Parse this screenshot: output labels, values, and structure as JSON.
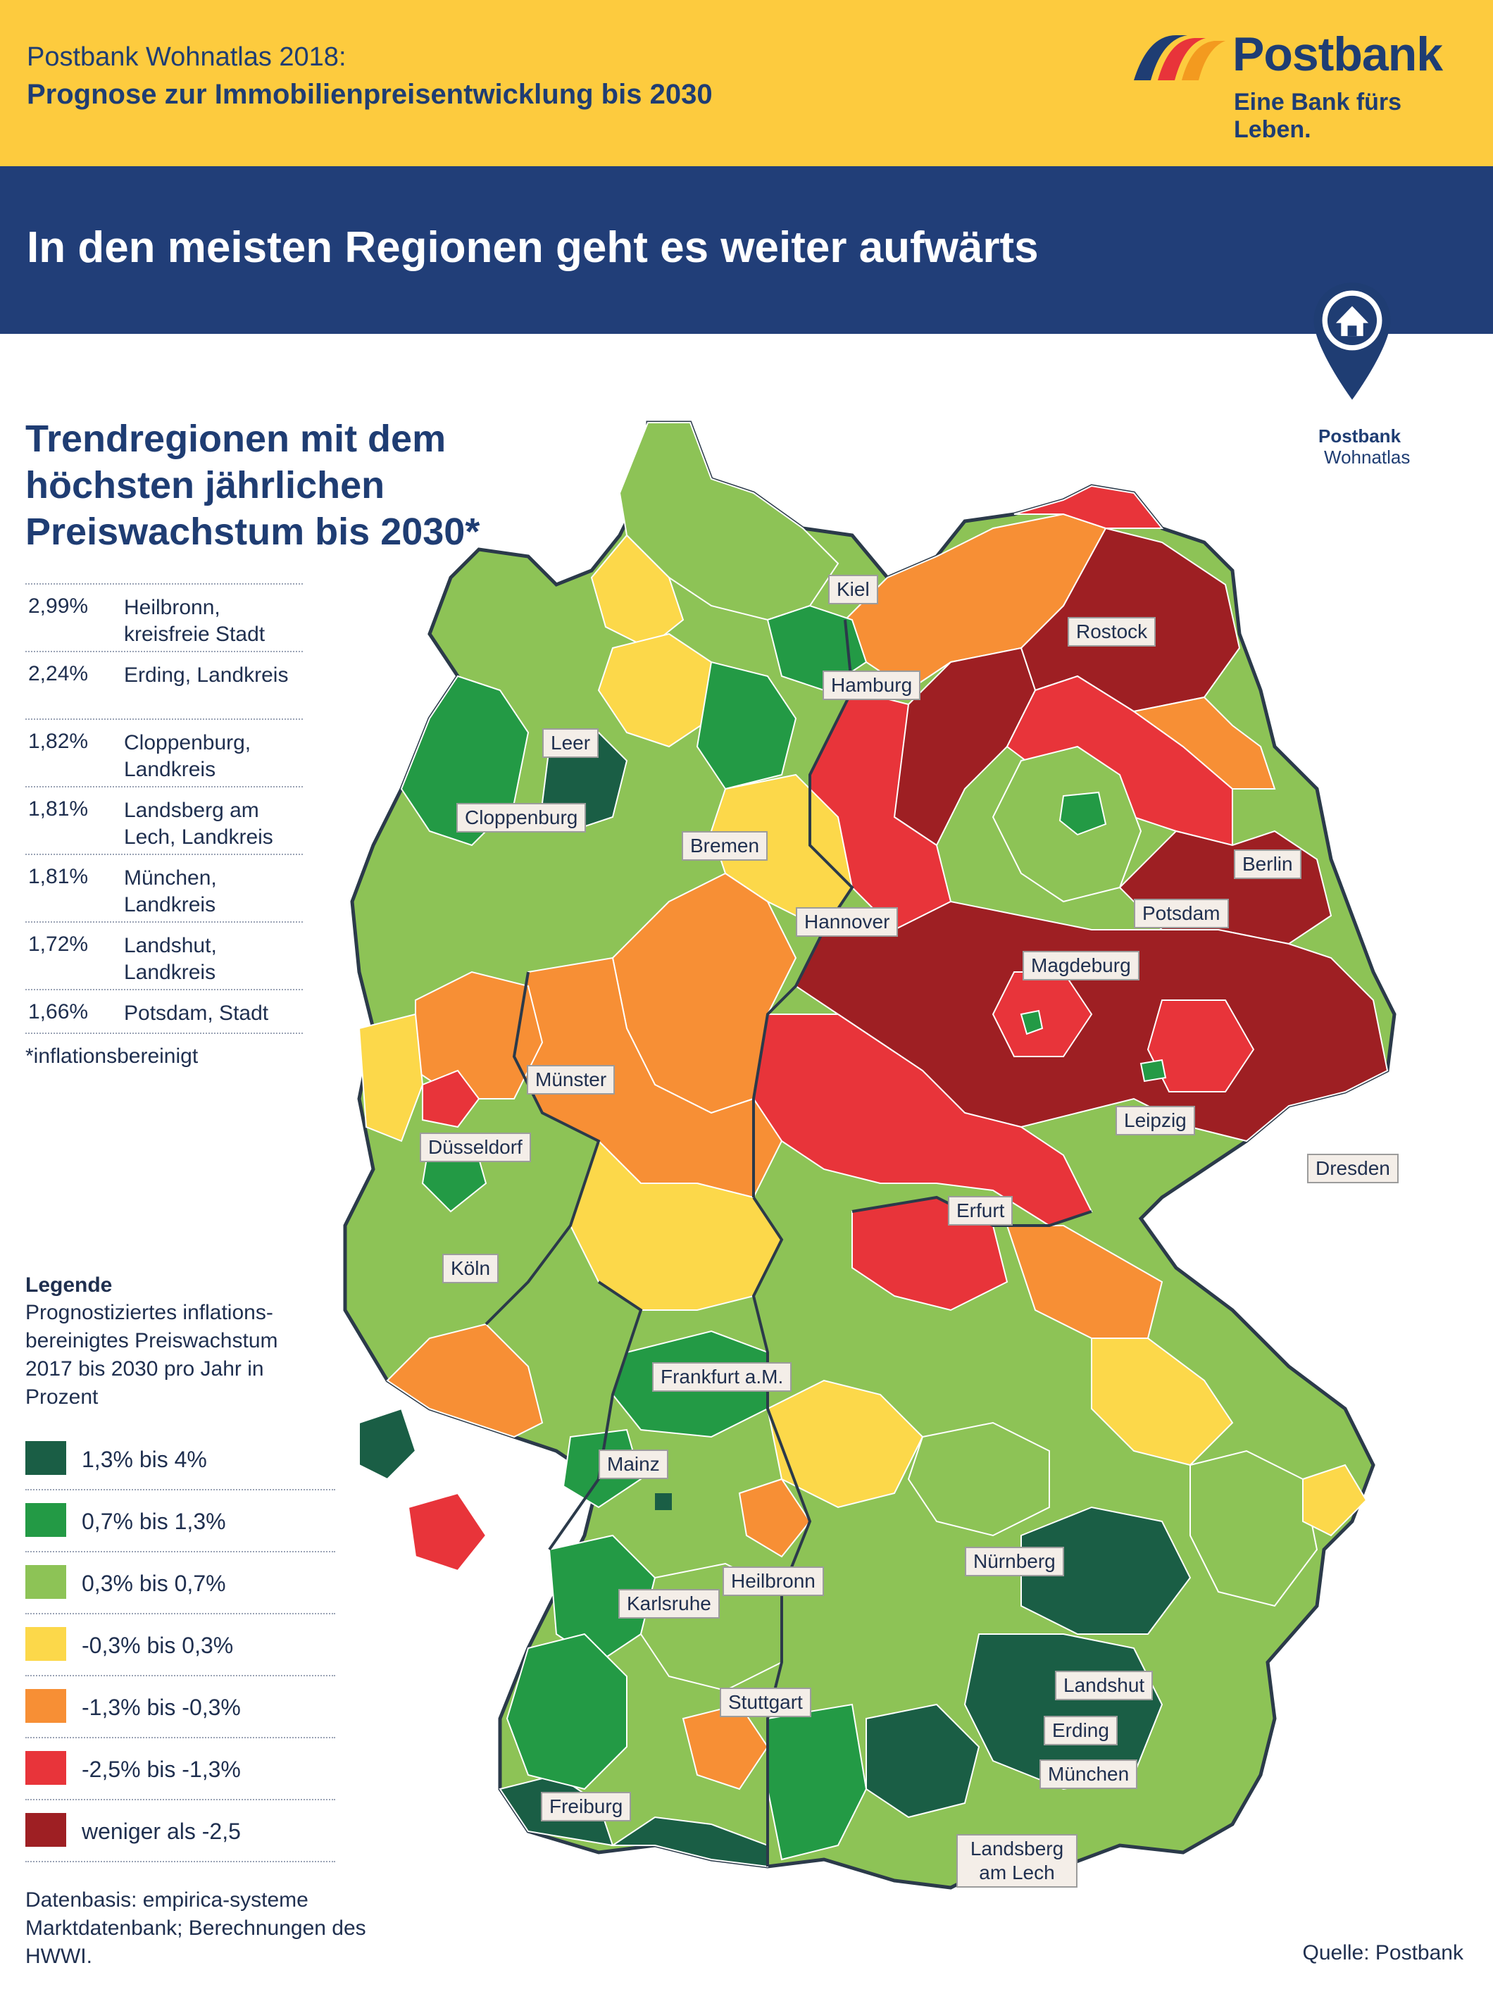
{
  "header": {
    "line1": "Postbank Wohnatlas 2018:",
    "line2": "Prognose zur Immobilienpreisentwicklung bis 2030",
    "brand_name": "Postbank",
    "brand_slogan": "Eine Bank fürs Leben."
  },
  "headline": "In den meisten Regionen geht es weiter aufwärts",
  "badge": {
    "line1": "Postbank",
    "line2": "Wohnatlas"
  },
  "side_title": "Trendregionen mit dem höchsten jährlichen Preiswachstum bis 2030*",
  "ranking": [
    {
      "value": "2,99%",
      "name": "Heilbronn, kreisfreie Stadt"
    },
    {
      "value": "2,24%",
      "name": "Erding, Landkreis"
    },
    {
      "value": "1,82%",
      "name": "Cloppenburg, Landkreis"
    },
    {
      "value": "1,81%",
      "name": "Landsberg am Lech, Landkreis"
    },
    {
      "value": "1,81%",
      "name": "München, Landkreis"
    },
    {
      "value": "1,72%",
      "name": "Landshut, Landkreis"
    },
    {
      "value": "1,66%",
      "name": "Potsdam, Stadt"
    }
  ],
  "footnote": "*inflationsbereinigt",
  "legend": {
    "title": "Legende",
    "subtitle": "Prognostiziertes inflations-bereinigtes Preiswachstum 2017 bis 2030 pro Jahr in Prozent",
    "items": [
      {
        "label": "1,3% bis 4%",
        "color": "#1a5e45"
      },
      {
        "label": "0,7% bis 1,3%",
        "color": "#239a45"
      },
      {
        "label": "0,3% bis 0,7%",
        "color": "#8dc356"
      },
      {
        "label": "-0,3% bis 0,3%",
        "color": "#fcd84a"
      },
      {
        "label": "-1,3% bis -0,3%",
        "color": "#f78f35"
      },
      {
        "label": "-2,5% bis -1,3%",
        "color": "#e8343a"
      },
      {
        "label": "weniger als -2,5",
        "color": "#9e1f23"
      }
    ]
  },
  "basis": "Datenbasis: empirica-systeme Marktdatenbank; Berechnungen des HWWI.",
  "source": "Quelle: Postbank",
  "cities": {
    "kiel": "Kiel",
    "rostock": "Rostock",
    "hamburg": "Hamburg",
    "leer": "Leer",
    "cloppenburg": "Cloppenburg",
    "bremen": "Bremen",
    "berlin": "Berlin",
    "potsdam": "Potsdam",
    "hannover": "Hannover",
    "magdeburg": "Magdeburg",
    "muenster": "Münster",
    "leipzig": "Leipzig",
    "duesseldorf": "Düsseldorf",
    "dresden": "Dresden",
    "erfurt": "Erfurt",
    "koeln": "Köln",
    "frankfurt": "Frankfurt a.M.",
    "mainz": "Mainz",
    "nuernberg": "Nürnberg",
    "heilbronn": "Heilbronn",
    "karlsruhe": "Karlsruhe",
    "stuttgart": "Stuttgart",
    "landshut": "Landshut",
    "erding": "Erding",
    "muenchen": "München",
    "freiburg": "Freiburg",
    "landsberg": "Landsberg am Lech"
  }
}
